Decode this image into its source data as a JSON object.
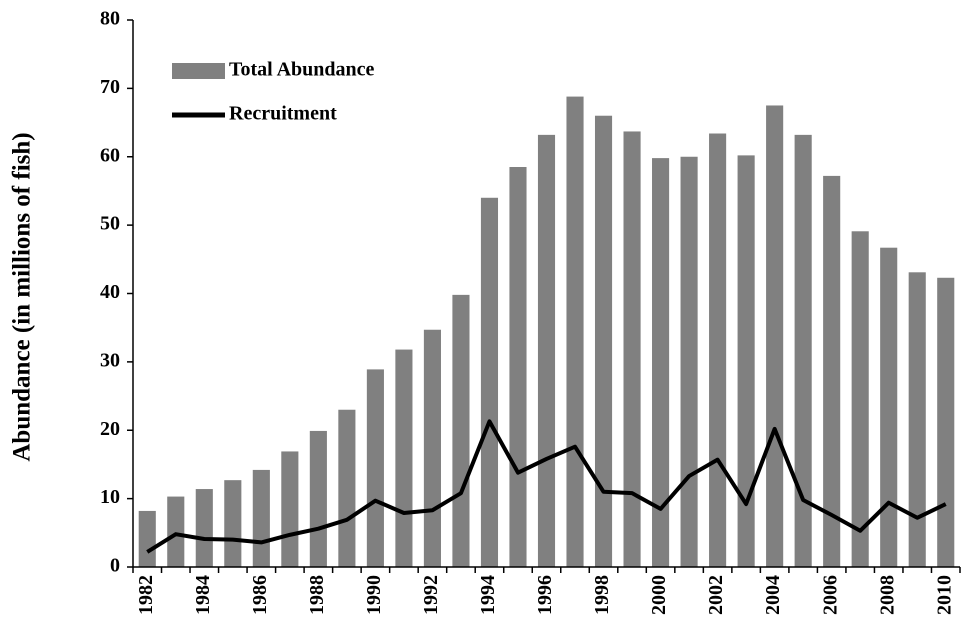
{
  "chart_data": {
    "type": "bar",
    "y_label": "Abundance (in millions of fish)",
    "categories": [
      "1982",
      null,
      "1984",
      null,
      "1986",
      null,
      "1988",
      null,
      "1990",
      null,
      "1992",
      null,
      "1994",
      null,
      "1996",
      null,
      "1998",
      null,
      "2000",
      null,
      "2002",
      null,
      "2004",
      null,
      "2006",
      null,
      "2008",
      null,
      "2010"
    ],
    "series": [
      {
        "name": "Total Abundance",
        "type": "bar",
        "color": "#808080",
        "values": [
          8.2,
          10.3,
          11.4,
          12.7,
          14.2,
          16.9,
          19.9,
          23.0,
          28.9,
          31.8,
          34.7,
          39.8,
          54.0,
          58.5,
          63.2,
          68.8,
          66.0,
          63.7,
          59.8,
          60.0,
          63.4,
          60.2,
          67.5,
          63.2,
          57.2,
          49.1,
          46.7,
          43.1,
          42.3
        ]
      },
      {
        "name": "Recruitment",
        "type": "line",
        "color": "#000000",
        "values": [
          2.2,
          4.8,
          4.1,
          4.0,
          3.6,
          4.7,
          5.6,
          6.9,
          9.7,
          7.9,
          8.3,
          10.8,
          21.3,
          13.8,
          15.8,
          17.6,
          11.0,
          10.8,
          8.5,
          13.3,
          15.7,
          9.2,
          20.2,
          9.8,
          7.6,
          5.3,
          9.4,
          7.2,
          9.2
        ]
      }
    ],
    "ylim": [
      0,
      80
    ],
    "yticks": [
      0,
      10,
      20,
      30,
      40,
      50,
      60,
      70,
      80
    ],
    "legend": "upper-left",
    "grid": false
  }
}
